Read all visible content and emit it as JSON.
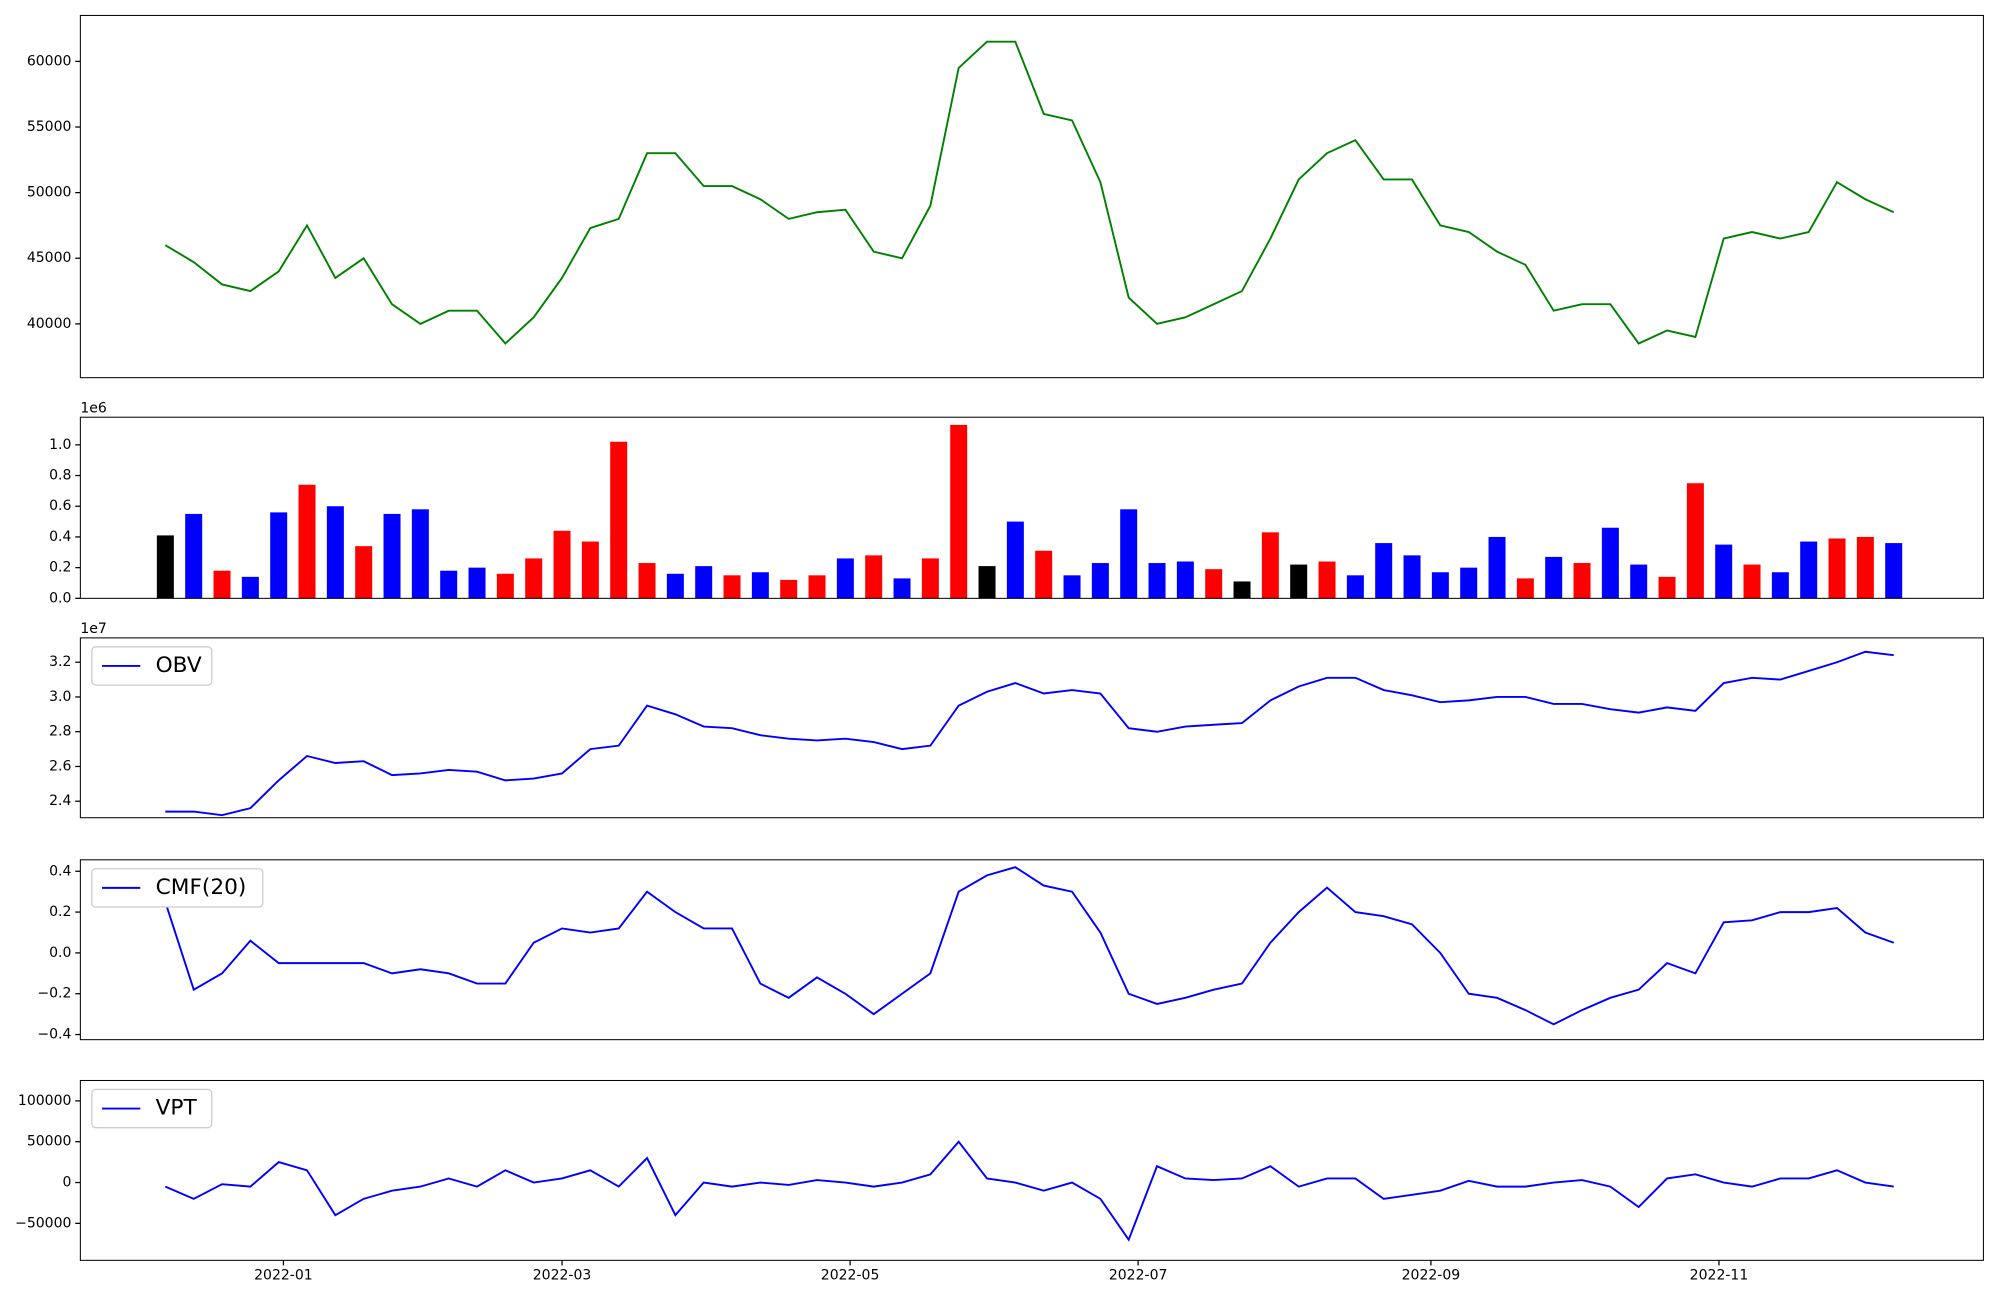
{
  "chart_data": [
    {
      "type": "line",
      "color": "#008000",
      "x": [
        -25,
        -19,
        -13,
        -7,
        -1,
        5,
        11,
        17,
        23,
        29,
        35,
        41,
        47,
        53,
        59,
        65,
        71,
        77,
        83,
        89,
        95,
        101,
        107,
        113,
        119,
        125,
        131,
        137,
        143,
        149,
        155,
        161,
        167,
        173,
        179,
        185,
        191,
        197,
        203,
        209,
        215,
        221,
        227,
        233,
        239,
        245,
        251,
        257,
        263,
        269,
        275,
        281,
        287,
        293,
        299,
        305,
        311,
        317,
        323,
        329,
        335,
        341
      ],
      "values": [
        46000,
        44700,
        43000,
        42500,
        44000,
        47500,
        43500,
        45000,
        41500,
        40000,
        41000,
        41000,
        38500,
        40500,
        43500,
        47300,
        48000,
        53000,
        53000,
        50500,
        50500,
        49500,
        48000,
        48500,
        48700,
        45500,
        45000,
        49000,
        59500,
        61500,
        61500,
        56000,
        55500,
        50800,
        42000,
        40000,
        40500,
        41500,
        42500,
        46500,
        51000,
        53000,
        54000,
        51000,
        51000,
        47500,
        47000,
        45500,
        44500,
        41000,
        41500,
        41500,
        38500,
        39500,
        39000,
        46500,
        47000,
        46500,
        47000,
        50800,
        49500,
        48500
      ],
      "xlim": [
        -43,
        360
      ],
      "ylim": [
        35900,
        63500
      ],
      "yticks": [
        40000,
        45000,
        50000,
        55000,
        60000
      ]
    },
    {
      "type": "bar",
      "offset_label": "1e6",
      "x": [
        -25,
        -19,
        -13,
        -7,
        -1,
        5,
        11,
        17,
        23,
        29,
        35,
        41,
        47,
        53,
        59,
        65,
        71,
        77,
        83,
        89,
        95,
        101,
        107,
        113,
        119,
        125,
        131,
        137,
        143,
        149,
        155,
        161,
        167,
        173,
        179,
        185,
        191,
        197,
        203,
        209,
        215,
        221,
        227,
        233,
        239,
        245,
        251,
        257,
        263,
        269,
        275,
        281,
        287,
        293,
        299,
        305,
        311,
        317,
        323,
        329,
        335,
        341
      ],
      "values": [
        0.41,
        0.55,
        0.18,
        0.14,
        0.56,
        0.74,
        0.6,
        0.34,
        0.55,
        0.58,
        0.18,
        0.2,
        0.16,
        0.26,
        0.44,
        0.37,
        1.02,
        0.23,
        0.16,
        0.21,
        0.15,
        0.17,
        0.12,
        0.15,
        0.26,
        0.28,
        0.13,
        0.26,
        1.13,
        0.21,
        0.5,
        0.31,
        0.15,
        0.23,
        0.58,
        0.23,
        0.24,
        0.19,
        0.11,
        0.43,
        0.22,
        0.24,
        0.15,
        0.36,
        0.28,
        0.17,
        0.2,
        0.4,
        0.13,
        0.27,
        0.23,
        0.46,
        0.22,
        0.14,
        0.75,
        0.35,
        0.22,
        0.17,
        0.37,
        0.39,
        0.4,
        0.36
      ],
      "colors": [
        "black",
        "blue",
        "red",
        "blue",
        "blue",
        "red",
        "blue",
        "red",
        "blue",
        "blue",
        "blue",
        "blue",
        "red",
        "red",
        "red",
        "red",
        "red",
        "red",
        "blue",
        "blue",
        "red",
        "blue",
        "red",
        "red",
        "blue",
        "red",
        "blue",
        "red",
        "red",
        "black",
        "blue",
        "red",
        "blue",
        "blue",
        "blue",
        "blue",
        "blue",
        "red",
        "black",
        "red",
        "black",
        "red",
        "blue",
        "blue",
        "blue",
        "blue",
        "blue",
        "blue",
        "red",
        "blue",
        "red",
        "blue",
        "blue",
        "red",
        "red",
        "blue",
        "red",
        "blue",
        "blue",
        "red",
        "red",
        "blue"
      ],
      "xlim": [
        -43,
        360
      ],
      "ylim": [
        0,
        1.18
      ],
      "yticks": [
        {
          "value": 0,
          "label": "0.0"
        },
        0.2,
        0.4,
        0.6,
        0.8,
        {
          "value": 1,
          "label": "1.0"
        }
      ]
    },
    {
      "type": "line",
      "offset_label": "1e7",
      "legend": "upper left",
      "x": [
        -25,
        -19,
        -13,
        -7,
        -1,
        5,
        11,
        17,
        23,
        29,
        35,
        41,
        47,
        53,
        59,
        65,
        71,
        77,
        83,
        89,
        95,
        101,
        107,
        113,
        119,
        125,
        131,
        137,
        143,
        149,
        155,
        161,
        167,
        173,
        179,
        185,
        191,
        197,
        203,
        209,
        215,
        221,
        227,
        233,
        239,
        245,
        251,
        257,
        263,
        269,
        275,
        281,
        287,
        293,
        299,
        305,
        311,
        317,
        323,
        329,
        335,
        341
      ],
      "series": [
        {
          "name": "OBV",
          "color": "#0000ff",
          "values": [
            2.34,
            2.34,
            2.32,
            2.36,
            2.52,
            2.66,
            2.62,
            2.63,
            2.55,
            2.56,
            2.58,
            2.57,
            2.52,
            2.53,
            2.56,
            2.7,
            2.72,
            2.95,
            2.9,
            2.83,
            2.82,
            2.78,
            2.76,
            2.75,
            2.76,
            2.74,
            2.7,
            2.72,
            2.95,
            3.03,
            3.08,
            3.02,
            3.04,
            3.02,
            2.82,
            2.8,
            2.83,
            2.84,
            2.85,
            2.98,
            3.06,
            3.11,
            3.11,
            3.04,
            3.01,
            2.97,
            2.98,
            3.0,
            3.0,
            2.96,
            2.96,
            2.93,
            2.91,
            2.94,
            2.92,
            3.08,
            3.11,
            3.1,
            3.15,
            3.2,
            3.26,
            3.24
          ]
        }
      ],
      "xlim": [
        -43,
        360
      ],
      "ylim": [
        2.305,
        3.34
      ],
      "yticks": [
        2.4,
        2.6,
        2.8,
        {
          "value": 3,
          "label": "3.0"
        },
        3.2
      ]
    },
    {
      "type": "line",
      "legend": "upper left",
      "x": [
        -25,
        -19,
        -13,
        -7,
        -1,
        5,
        11,
        17,
        23,
        29,
        35,
        41,
        47,
        53,
        59,
        65,
        71,
        77,
        83,
        89,
        95,
        101,
        107,
        113,
        119,
        125,
        131,
        137,
        143,
        149,
        155,
        161,
        167,
        173,
        179,
        185,
        191,
        197,
        203,
        209,
        215,
        221,
        227,
        233,
        239,
        245,
        251,
        257,
        263,
        269,
        275,
        281,
        287,
        293,
        299,
        305,
        311,
        317,
        323,
        329,
        335,
        341
      ],
      "series": [
        {
          "name": "CMF(20)",
          "color": "#0000ff",
          "values": [
            0.25,
            -0.18,
            -0.1,
            0.06,
            -0.05,
            -0.05,
            -0.05,
            -0.05,
            -0.1,
            -0.08,
            -0.1,
            -0.15,
            -0.15,
            0.05,
            0.12,
            0.1,
            0.12,
            0.3,
            0.2,
            0.12,
            0.12,
            -0.15,
            -0.22,
            -0.12,
            -0.2,
            -0.3,
            -0.2,
            -0.1,
            0.3,
            0.38,
            0.42,
            0.33,
            0.3,
            0.1,
            -0.2,
            -0.25,
            -0.22,
            -0.18,
            -0.15,
            0.05,
            0.2,
            0.32,
            0.2,
            0.18,
            0.14,
            0.0,
            -0.2,
            -0.22,
            -0.28,
            -0.35,
            -0.28,
            -0.22,
            -0.18,
            -0.05,
            -0.1,
            0.15,
            0.16,
            0.2,
            0.2,
            0.22,
            0.1,
            0.05
          ]
        }
      ],
      "xlim": [
        -43,
        360
      ],
      "ylim": [
        -0.425,
        0.456
      ],
      "yticks": [
        {
          "value": -0.4,
          "label": "−0.4"
        },
        {
          "value": -0.2,
          "label": "−0.2"
        },
        {
          "value": 0,
          "label": "0.0"
        },
        0.2,
        0.4
      ]
    },
    {
      "type": "line",
      "legend": "upper left",
      "x": [
        -25,
        -19,
        -13,
        -7,
        -1,
        5,
        11,
        17,
        23,
        29,
        35,
        41,
        47,
        53,
        59,
        65,
        71,
        77,
        83,
        89,
        95,
        101,
        107,
        113,
        119,
        125,
        131,
        137,
        143,
        149,
        155,
        161,
        167,
        173,
        179,
        185,
        191,
        197,
        203,
        209,
        215,
        221,
        227,
        233,
        239,
        245,
        251,
        257,
        263,
        269,
        275,
        281,
        287,
        293,
        299,
        305,
        311,
        317,
        323,
        329,
        335,
        341
      ],
      "series": [
        {
          "name": "VPT",
          "color": "#0000ff",
          "values": [
            -5000,
            -20000,
            -2000,
            -5000,
            25000,
            15000,
            -40000,
            -20000,
            -10000,
            -5000,
            5000,
            -5000,
            15000,
            0,
            5000,
            15000,
            -5000,
            30000,
            -40000,
            0,
            -5000,
            0,
            -3000,
            3000,
            0,
            -5000,
            0,
            10000,
            50000,
            5000,
            0,
            -10000,
            0,
            -20000,
            -70000,
            20000,
            5000,
            3000,
            5000,
            20000,
            -5000,
            5000,
            5000,
            -20000,
            -15000,
            -10000,
            2000,
            -5000,
            -5000,
            0,
            3000,
            -5000,
            -30000,
            5000,
            10000,
            0,
            -5000,
            5000,
            5000,
            15000,
            0,
            -5000
          ]
        }
      ],
      "xlim": [
        -43,
        360
      ],
      "ylim": [
        -95300,
        125000
      ],
      "yticks": [
        {
          "value": -50000,
          "label": "−50000"
        },
        0,
        50000,
        100000
      ],
      "xticks": [
        {
          "value": 0,
          "label": "2022-01"
        },
        {
          "value": 59,
          "label": "2022-03"
        },
        {
          "value": 120,
          "label": "2022-05"
        },
        {
          "value": 181,
          "label": "2022-07"
        },
        {
          "value": 243,
          "label": "2022-09"
        },
        {
          "value": 304,
          "label": "2022-11"
        }
      ]
    }
  ]
}
